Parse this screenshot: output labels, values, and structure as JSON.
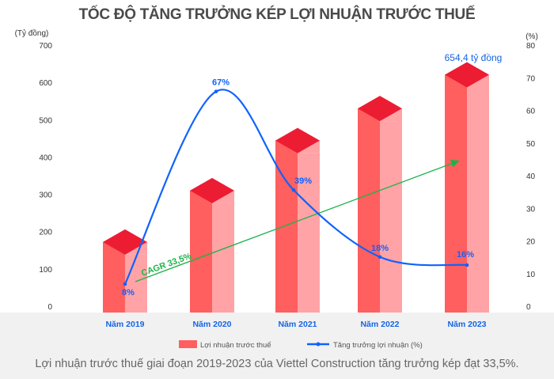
{
  "chart_data": {
    "type": "bar+line",
    "title": "TỐC ĐỘ TĂNG TRƯỞNG KÉP LỢI NHUẬN TRƯỚC THUẾ",
    "categories": [
      "Năm 2019",
      "Năm 2020",
      "Năm 2021",
      "Năm 2022",
      "Năm 2023"
    ],
    "series": [
      {
        "name": "Lợi nhuận trước thuế",
        "type": "bar",
        "axis": "left",
        "values": [
          206,
          344,
          478,
          564,
          654.4
        ],
        "color": "#ff5f5f"
      },
      {
        "name": "Tăng trưởng lợi nhuận (%)",
        "type": "line",
        "axis": "right",
        "values": [
          8,
          67,
          39,
          18,
          16
        ],
        "labels": [
          "8%",
          "67%",
          "39%",
          "18%",
          "16%"
        ],
        "color": "#0f62fe"
      }
    ],
    "left_axis": {
      "label": "(Tỷ đồng)",
      "range": [
        0,
        700
      ],
      "ticks": [
        "0",
        "100",
        "200",
        "300",
        "400",
        "500",
        "600",
        "700"
      ]
    },
    "right_axis": {
      "label": "(%)",
      "range": [
        0,
        80
      ],
      "ticks": [
        "0",
        "10",
        "20",
        "30",
        "40",
        "50",
        "60",
        "70",
        "80"
      ]
    },
    "annotations": {
      "last_bar": "654,4 tỷ đồng",
      "cagr": "CAGR 33,5%"
    },
    "legend_position": "bottom",
    "colors": {
      "bar_left": "#ff5f5f",
      "bar_right": "#ffa3a6",
      "bar_top": "#ec1c33",
      "line": "#0f62fe",
      "cagr": "#1db34a",
      "category": "#1565e6"
    }
  },
  "caption": "Lợi nhuận trước thuế giai đoạn 2019-2023 của Viettel Construction tăng trưởng kép đạt 33,5%."
}
